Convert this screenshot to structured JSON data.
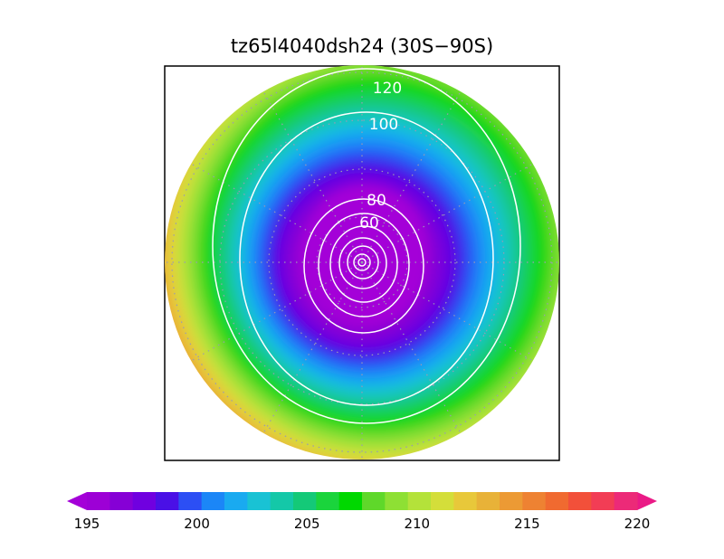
{
  "chart_data": {
    "type": "heatmap",
    "projection": "polar-stereographic",
    "title": "tz65l4040dsh24 (30S−90S)",
    "contour_levels": [
      120,
      100,
      80,
      60
    ],
    "colorbar": {
      "min": 195,
      "max": 220,
      "step": 1,
      "tick_labels": [
        "195",
        "200",
        "205",
        "210",
        "215",
        "220"
      ],
      "colors": [
        "#9d00d6",
        "#8600d6",
        "#7000e0",
        "#4a10e6",
        "#2c4ff4",
        "#1b86f7",
        "#19aaf0",
        "#19c2d4",
        "#14c8a8",
        "#14c978",
        "#1ad43c",
        "#00d800",
        "#5fd82a",
        "#8ee034",
        "#b4e23a",
        "#d4de3a",
        "#e8c83a",
        "#e8b238",
        "#ec9a34",
        "#ee8232",
        "#f06a30",
        "#f2503a",
        "#f23d55",
        "#ec2a78"
      ],
      "under_color": "#a400d8",
      "over_color": "#ea1a86",
      "placement": "bottom"
    },
    "grid": true
  }
}
